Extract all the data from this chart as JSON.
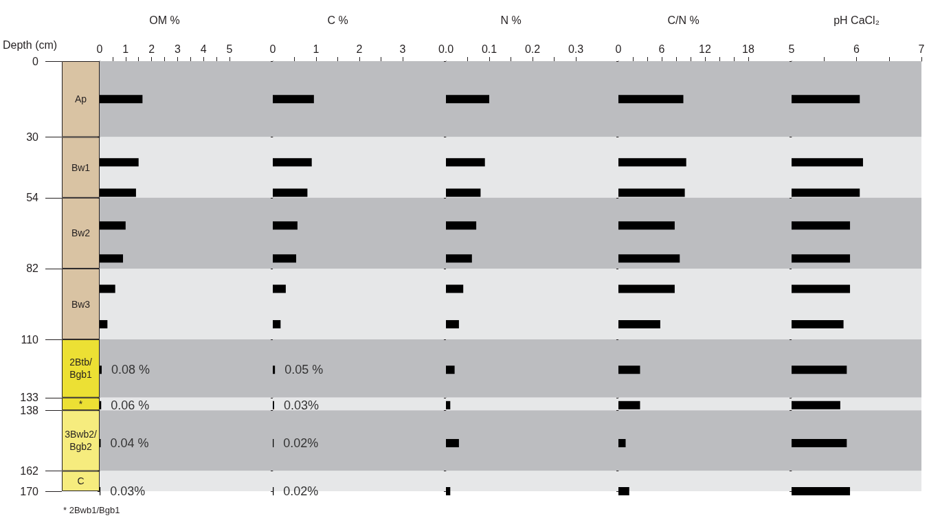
{
  "chart_data": [
    {
      "type": "bar",
      "stacked": true,
      "ylabel": "Depth (cm)",
      "categories": [
        null
      ],
      "tick_labels": "y",
      "ylim": [
        170,
        0
      ],
      "yticks": [
        0,
        30,
        54,
        82,
        110,
        133,
        138,
        162,
        170
      ],
      "series": [
        {
          "name": "Ap",
          "color": "#d9c3a3",
          "values": [
            30
          ]
        },
        {
          "name": "Bw1",
          "color": "#d9c3a3",
          "values": [
            24
          ]
        },
        {
          "name": "Bw2",
          "color": "#d9c3a3",
          "values": [
            28
          ]
        },
        {
          "name": "Bw3",
          "color": "#d9c3a3",
          "values": [
            28
          ]
        },
        {
          "name": "2Btb/\nBgb1",
          "color": "#ece034",
          "values": [
            23
          ]
        },
        {
          "name": "*",
          "color": "#ece034",
          "values": [
            5
          ]
        },
        {
          "name": "3Bwb2/\nBgb2",
          "color": "#f6ec7e",
          "values": [
            24
          ]
        },
        {
          "name": "C",
          "color": "#f6ec7e",
          "values": [
            8
          ]
        }
      ],
      "annotations": [
        "* 2Bwb1/Bgb1"
      ]
    },
    {
      "type": "bar",
      "orientation": "horizontal",
      "xlabel": "OM %",
      "color": "#000000",
      "tick_labels": "x",
      "x": [
        15,
        40,
        52,
        65,
        78,
        90,
        104,
        122,
        136,
        151,
        170
      ],
      "values": [
        1.65,
        1.5,
        1.4,
        1.0,
        0.9,
        0.6,
        0.3,
        0.08,
        0.06,
        0.04,
        0.03
      ],
      "value_labels": [
        null,
        null,
        null,
        null,
        null,
        null,
        null,
        "0.08 %",
        "0.06 %",
        "0.04 %",
        "0.03%"
      ],
      "xlim": [
        0,
        5
      ],
      "xticks": [
        0,
        {
          "value": 0.5,
          "label": null
        },
        1,
        {
          "value": 1.5,
          "label": null
        },
        2,
        {
          "value": 2.5,
          "label": null
        },
        3,
        {
          "value": 3.5,
          "label": null
        },
        4,
        {
          "value": 4.5,
          "label": null
        },
        5
      ],
      "ylim": [
        170,
        0
      ],
      "yticks": [
        0,
        30,
        54,
        82,
        110,
        133,
        138,
        162,
        170
      ],
      "bands": [
        {
          "axis": "y",
          "from": 0,
          "to": 30,
          "color": "#bcbdc0"
        },
        {
          "axis": "y",
          "from": 30,
          "to": 54,
          "color": "#e6e7e8"
        },
        {
          "axis": "y",
          "from": 54,
          "to": 82,
          "color": "#bcbdc0"
        },
        {
          "axis": "y",
          "from": 82,
          "to": 110,
          "color": "#e6e7e8"
        },
        {
          "axis": "y",
          "from": 110,
          "to": 133,
          "color": "#bcbdc0"
        },
        {
          "axis": "y",
          "from": 133,
          "to": 138,
          "color": "#e6e7e8"
        },
        {
          "axis": "y",
          "from": 138,
          "to": 162,
          "color": "#bcbdc0"
        },
        {
          "axis": "y",
          "from": 162,
          "to": 170,
          "color": "#e6e7e8"
        }
      ]
    },
    {
      "type": "bar",
      "orientation": "horizontal",
      "xlabel": "C %",
      "color": "#000000",
      "tick_labels": "x",
      "x": [
        15,
        40,
        52,
        65,
        78,
        90,
        104,
        122,
        136,
        151,
        170
      ],
      "values": [
        0.95,
        0.9,
        0.8,
        0.57,
        0.54,
        0.3,
        0.18,
        0.05,
        0.03,
        0.02,
        0.02
      ],
      "value_labels": [
        null,
        null,
        null,
        null,
        null,
        null,
        null,
        "0.05 %",
        "0.03%",
        "0.02%",
        "0.02%"
      ],
      "xlim": [
        0,
        3
      ],
      "xticks": [
        0,
        {
          "value": 0.5,
          "label": null
        },
        1,
        {
          "value": 1.5,
          "label": null
        },
        2,
        {
          "value": 2.5,
          "label": null
        },
        3
      ],
      "ylim": [
        170,
        0
      ],
      "yticks": [
        0,
        30,
        54,
        82,
        110,
        133,
        138,
        162,
        170
      ],
      "bands": [
        {
          "axis": "y",
          "from": 0,
          "to": 30,
          "color": "#bcbdc0"
        },
        {
          "axis": "y",
          "from": 30,
          "to": 54,
          "color": "#e6e7e8"
        },
        {
          "axis": "y",
          "from": 54,
          "to": 82,
          "color": "#bcbdc0"
        },
        {
          "axis": "y",
          "from": 82,
          "to": 110,
          "color": "#e6e7e8"
        },
        {
          "axis": "y",
          "from": 110,
          "to": 133,
          "color": "#bcbdc0"
        },
        {
          "axis": "y",
          "from": 133,
          "to": 138,
          "color": "#e6e7e8"
        },
        {
          "axis": "y",
          "from": 138,
          "to": 162,
          "color": "#bcbdc0"
        },
        {
          "axis": "y",
          "from": 162,
          "to": 170,
          "color": "#e6e7e8"
        }
      ]
    },
    {
      "type": "bar",
      "orientation": "horizontal",
      "xlabel": "N %",
      "color": "#000000",
      "tick_labels": "x",
      "x": [
        15,
        40,
        52,
        65,
        78,
        90,
        104,
        122,
        136,
        151,
        170
      ],
      "values": [
        0.1,
        0.09,
        0.08,
        0.07,
        0.06,
        0.04,
        0.03,
        0.02,
        0.01,
        0.03,
        0.01
      ],
      "xlim": [
        0,
        0.3
      ],
      "xticks": [
        {
          "value": 0,
          "label": "0.0"
        },
        {
          "value": 0.05,
          "label": null
        },
        0.1,
        {
          "value": 0.15,
          "label": null
        },
        0.2,
        {
          "value": 0.25,
          "label": null
        },
        0.3
      ],
      "ylim": [
        170,
        0
      ],
      "yticks": [
        0,
        30,
        54,
        82,
        110,
        133,
        138,
        162,
        170
      ],
      "bands": [
        {
          "axis": "y",
          "from": 0,
          "to": 30,
          "color": "#bcbdc0"
        },
        {
          "axis": "y",
          "from": 30,
          "to": 54,
          "color": "#e6e7e8"
        },
        {
          "axis": "y",
          "from": 54,
          "to": 82,
          "color": "#bcbdc0"
        },
        {
          "axis": "y",
          "from": 82,
          "to": 110,
          "color": "#e6e7e8"
        },
        {
          "axis": "y",
          "from": 110,
          "to": 133,
          "color": "#bcbdc0"
        },
        {
          "axis": "y",
          "from": 133,
          "to": 138,
          "color": "#e6e7e8"
        },
        {
          "axis": "y",
          "from": 138,
          "to": 162,
          "color": "#bcbdc0"
        },
        {
          "axis": "y",
          "from": 162,
          "to": 170,
          "color": "#e6e7e8"
        }
      ]
    },
    {
      "type": "bar",
      "orientation": "horizontal",
      "xlabel": "C/N %",
      "color": "#000000",
      "tick_labels": "x",
      "x": [
        15,
        40,
        52,
        65,
        78,
        90,
        104,
        122,
        136,
        151,
        170
      ],
      "values": [
        9.0,
        9.4,
        9.2,
        7.8,
        8.5,
        7.8,
        5.8,
        3.0,
        3.0,
        1.0,
        1.5
      ],
      "xlim": [
        0,
        18
      ],
      "xticks": [
        0,
        {
          "value": 2,
          "label": null
        },
        {
          "value": 4,
          "label": null
        },
        6,
        {
          "value": 8,
          "label": null
        },
        {
          "value": 10,
          "label": null
        },
        12,
        {
          "value": 14,
          "label": null
        },
        {
          "value": 16,
          "label": null
        },
        18
      ],
      "ylim": [
        170,
        0
      ],
      "yticks": [
        0,
        30,
        54,
        82,
        110,
        133,
        138,
        162,
        170
      ],
      "bands": [
        {
          "axis": "y",
          "from": 0,
          "to": 30,
          "color": "#bcbdc0"
        },
        {
          "axis": "y",
          "from": 30,
          "to": 54,
          "color": "#e6e7e8"
        },
        {
          "axis": "y",
          "from": 54,
          "to": 82,
          "color": "#bcbdc0"
        },
        {
          "axis": "y",
          "from": 82,
          "to": 110,
          "color": "#e6e7e8"
        },
        {
          "axis": "y",
          "from": 110,
          "to": 133,
          "color": "#bcbdc0"
        },
        {
          "axis": "y",
          "from": 133,
          "to": 138,
          "color": "#e6e7e8"
        },
        {
          "axis": "y",
          "from": 138,
          "to": 162,
          "color": "#bcbdc0"
        },
        {
          "axis": "y",
          "from": 162,
          "to": 170,
          "color": "#e6e7e8"
        }
      ]
    },
    {
      "type": "bar",
      "orientation": "horizontal",
      "xlabel": "pH CaCl₂",
      "color": "#000000",
      "tick_labels": "x",
      "x": [
        15,
        40,
        52,
        65,
        78,
        90,
        104,
        122,
        136,
        151,
        170
      ],
      "values": [
        6.05,
        6.1,
        6.05,
        5.9,
        5.9,
        5.9,
        5.8,
        5.85,
        5.75,
        5.85,
        5.9
      ],
      "xlim": [
        5,
        7
      ],
      "xticks": [
        5,
        {
          "value": 5.5,
          "label": null
        },
        6,
        {
          "value": 6.5,
          "label": null
        },
        7
      ],
      "ylim": [
        170,
        0
      ],
      "yticks": [
        0,
        30,
        54,
        82,
        110,
        133,
        138,
        162,
        170
      ],
      "bands": [
        {
          "axis": "y",
          "from": 0,
          "to": 30,
          "color": "#bcbdc0"
        },
        {
          "axis": "y",
          "from": 30,
          "to": 54,
          "color": "#e6e7e8"
        },
        {
          "axis": "y",
          "from": 54,
          "to": 82,
          "color": "#bcbdc0"
        },
        {
          "axis": "y",
          "from": 82,
          "to": 110,
          "color": "#e6e7e8"
        },
        {
          "axis": "y",
          "from": 110,
          "to": 133,
          "color": "#bcbdc0"
        },
        {
          "axis": "y",
          "from": 133,
          "to": 138,
          "color": "#e6e7e8"
        },
        {
          "axis": "y",
          "from": 138,
          "to": 162,
          "color": "#bcbdc0"
        },
        {
          "axis": "y",
          "from": 162,
          "to": 170,
          "color": "#e6e7e8"
        }
      ]
    }
  ]
}
